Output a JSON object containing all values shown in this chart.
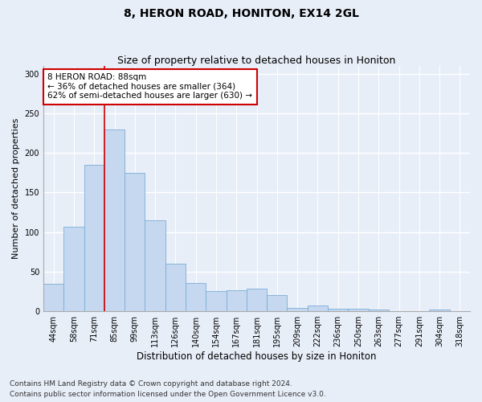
{
  "title": "8, HERON ROAD, HONITON, EX14 2GL",
  "subtitle": "Size of property relative to detached houses in Honiton",
  "xlabel": "Distribution of detached houses by size in Honiton",
  "ylabel": "Number of detached properties",
  "categories": [
    "44sqm",
    "58sqm",
    "71sqm",
    "85sqm",
    "99sqm",
    "113sqm",
    "126sqm",
    "140sqm",
    "154sqm",
    "167sqm",
    "181sqm",
    "195sqm",
    "209sqm",
    "222sqm",
    "236sqm",
    "250sqm",
    "263sqm",
    "277sqm",
    "291sqm",
    "304sqm",
    "318sqm"
  ],
  "values": [
    35,
    107,
    185,
    230,
    175,
    115,
    60,
    36,
    25,
    26,
    29,
    20,
    4,
    7,
    3,
    3,
    2,
    0,
    0,
    2,
    0
  ],
  "bar_color": "#c5d8f0",
  "bar_edge_color": "#7aadd4",
  "highlight_bar_index": 3,
  "highlight_line_color": "#cc0000",
  "annotation_text": "8 HERON ROAD: 88sqm\n← 36% of detached houses are smaller (364)\n62% of semi-detached houses are larger (630) →",
  "annotation_box_color": "#ffffff",
  "annotation_box_edge_color": "#cc0000",
  "ylim": [
    0,
    310
  ],
  "yticks": [
    0,
    50,
    100,
    150,
    200,
    250,
    300
  ],
  "footer_line1": "Contains HM Land Registry data © Crown copyright and database right 2024.",
  "footer_line2": "Contains public sector information licensed under the Open Government Licence v3.0.",
  "background_color": "#e8eef8",
  "plot_background_color": "#e8eef8",
  "grid_color": "#ffffff",
  "title_fontsize": 10,
  "subtitle_fontsize": 9,
  "xlabel_fontsize": 8.5,
  "ylabel_fontsize": 8,
  "tick_fontsize": 7,
  "annotation_fontsize": 7.5,
  "footer_fontsize": 6.5
}
